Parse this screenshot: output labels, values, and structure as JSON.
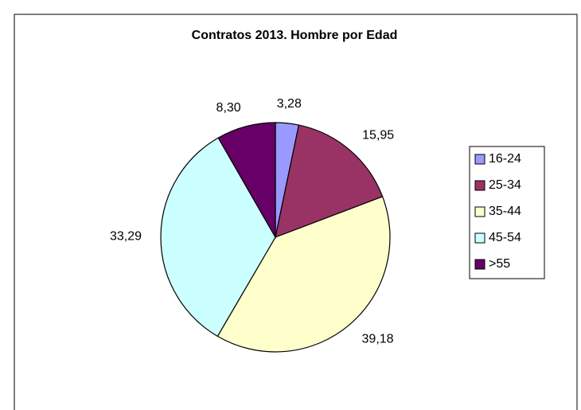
{
  "chart_data": {
    "type": "pie",
    "title": "Contratos 2013. Hombre por Edad",
    "categories": [
      "16-24",
      "25-34",
      "35-44",
      "45-54",
      ">55"
    ],
    "values": [
      3.28,
      15.95,
      39.18,
      33.29,
      8.3
    ],
    "value_labels": [
      "3,28",
      "15,95",
      "39,18",
      "33,29",
      "8,30"
    ],
    "colors": [
      "#9999ff",
      "#993366",
      "#ffffcc",
      "#ccffff",
      "#660066"
    ],
    "legend": "right"
  }
}
